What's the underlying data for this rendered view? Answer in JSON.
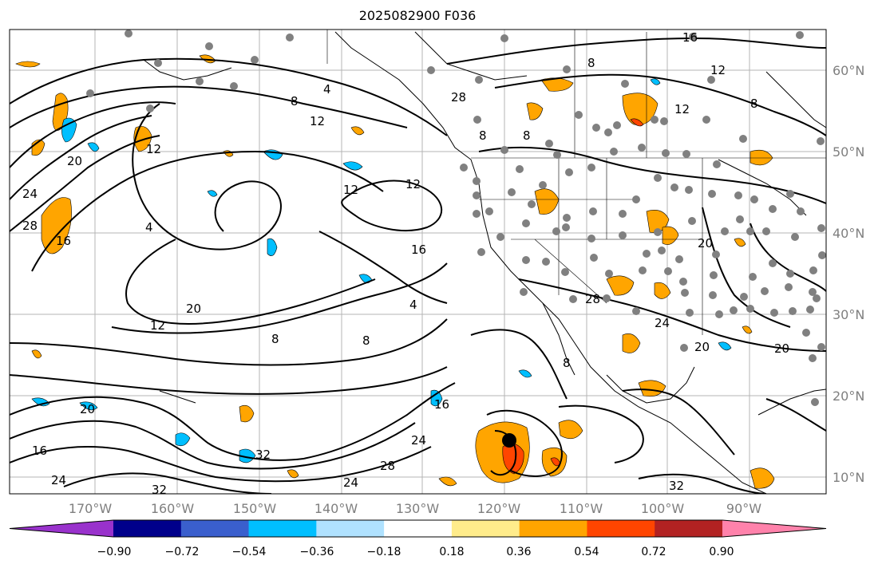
{
  "title": "2025082900 F036",
  "lat_labels": [
    "60°N",
    "50°N",
    "40°N",
    "30°N",
    "20°N",
    "10°N"
  ],
  "lon_labels": [
    "170°W",
    "160°W",
    "150°W",
    "140°W",
    "130°W",
    "120°W",
    "110°W",
    "100°W",
    "90°W"
  ],
  "colorbar": {
    "ticks": [
      "−0.90",
      "−0.72",
      "−0.54",
      "−0.36",
      "−0.18",
      "0.18",
      "0.36",
      "0.54",
      "0.72",
      "0.90"
    ],
    "colors": [
      "#9932cc",
      "#00008b",
      "#3a5fcd",
      "#00bfff",
      "#b0e2ff",
      "#ffffff",
      "#ffec8b",
      "#ffa500",
      "#ff4500",
      "#b22222",
      "#ff82ab"
    ]
  },
  "contour_labels": [
    "4",
    "8",
    "12",
    "16",
    "20",
    "24",
    "28",
    "32"
  ],
  "map": {
    "lon_range": [
      -178,
      -78
    ],
    "lat_range": [
      7.7,
      65
    ]
  }
}
